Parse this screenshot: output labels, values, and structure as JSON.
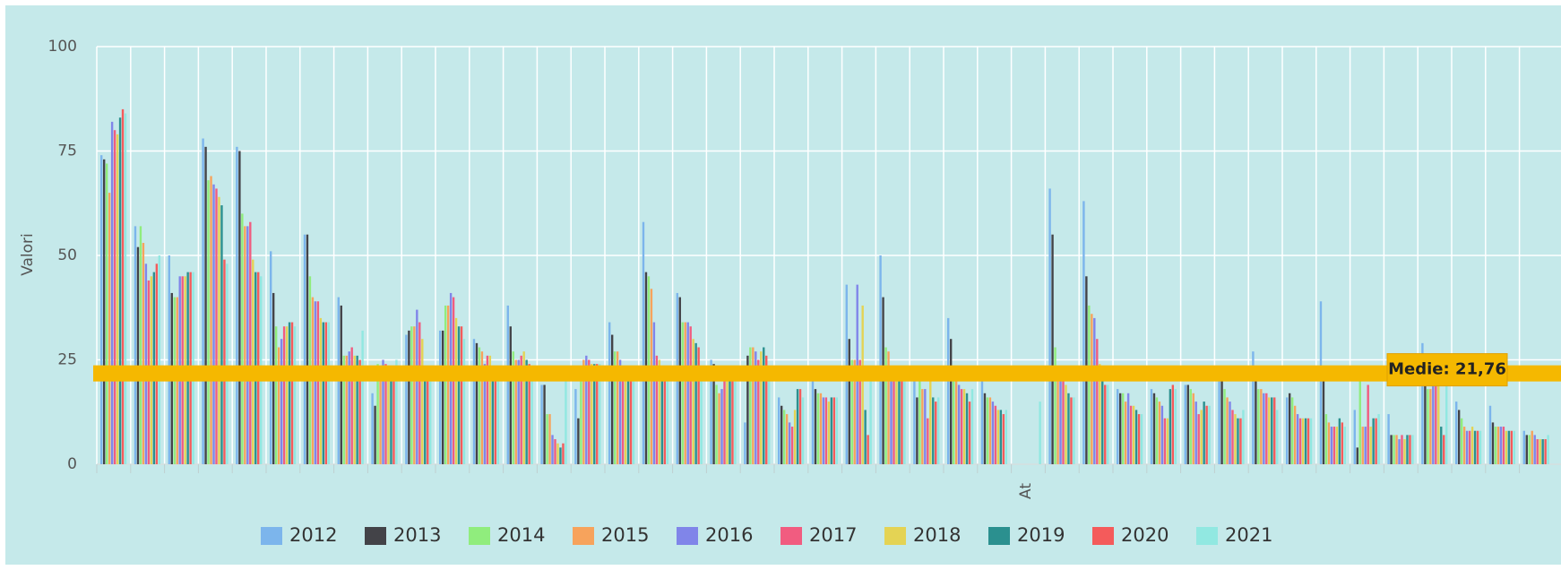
{
  "chart_data": {
    "type": "bar",
    "ylabel": "Valori",
    "xlabel": "At",
    "grid": true,
    "categories": [
      null,
      null,
      null,
      null,
      null,
      null,
      null,
      null,
      null,
      null,
      null,
      null,
      null,
      null,
      null,
      null,
      null,
      null,
      null,
      null,
      null,
      null,
      null,
      null,
      null,
      null,
      null,
      null,
      null,
      null,
      null,
      null,
      null,
      null,
      null,
      null,
      null,
      null,
      null,
      null,
      null,
      null,
      null
    ],
    "ylim": [
      0,
      100
    ],
    "yticks": [
      0,
      25,
      50,
      75,
      100
    ],
    "mean_line": {
      "value": 21.76,
      "label": "Medie: 21,76",
      "color": "#f5b800"
    },
    "series": [
      {
        "name": "2012",
        "color": "#7cb5ec",
        "values": [
          74,
          57,
          50,
          78,
          76,
          51,
          55,
          40,
          17,
          31,
          32,
          30,
          38,
          19,
          18,
          34,
          58,
          41,
          25,
          10,
          16,
          20,
          43,
          50,
          20,
          35,
          20,
          null,
          66,
          63,
          18,
          18,
          19,
          20,
          27,
          16,
          39,
          13,
          12,
          29,
          15,
          14,
          8
        ]
      },
      {
        "name": "2013",
        "color": "#434348",
        "values": [
          73,
          52,
          41,
          76,
          75,
          41,
          55,
          38,
          14,
          32,
          32,
          29,
          33,
          19,
          11,
          31,
          46,
          40,
          24,
          26,
          14,
          18,
          30,
          40,
          16,
          30,
          17,
          null,
          55,
          45,
          17,
          17,
          19,
          20,
          20,
          17,
          20,
          4,
          7,
          20,
          13,
          10,
          7
        ]
      },
      {
        "name": "2014",
        "color": "#90ed7d",
        "values": [
          72,
          57,
          40,
          68,
          60,
          33,
          45,
          26,
          24,
          33,
          38,
          28,
          27,
          12,
          20,
          27,
          45,
          34,
          19,
          28,
          13,
          17,
          25,
          28,
          20,
          20,
          16,
          null,
          28,
          38,
          17,
          16,
          18,
          18,
          18,
          16,
          12,
          20,
          7,
          18,
          11,
          9,
          7
        ]
      },
      {
        "name": "2015",
        "color": "#f7a35c",
        "values": [
          65,
          53,
          40,
          69,
          57,
          28,
          40,
          26,
          22,
          33,
          38,
          27,
          25,
          12,
          25,
          27,
          42,
          34,
          17,
          28,
          12,
          17,
          25,
          27,
          18,
          20,
          16,
          null,
          22,
          36,
          15,
          15,
          17,
          16,
          18,
          14,
          10,
          9,
          7,
          18,
          9,
          9,
          8
        ]
      },
      {
        "name": "2016",
        "color": "#8085e9",
        "values": [
          82,
          48,
          45,
          67,
          57,
          30,
          39,
          27,
          25,
          37,
          41,
          24,
          25,
          7,
          26,
          25,
          34,
          34,
          18,
          27,
          10,
          16,
          43,
          22,
          18,
          19,
          15,
          null,
          20,
          35,
          17,
          14,
          15,
          15,
          17,
          12,
          9,
          9,
          6,
          20,
          8,
          9,
          7
        ]
      },
      {
        "name": "2017",
        "color": "#f15c80",
        "values": [
          80,
          44,
          45,
          66,
          58,
          33,
          39,
          28,
          24,
          34,
          40,
          26,
          26,
          6,
          25,
          22,
          26,
          33,
          21,
          25,
          9,
          16,
          25,
          21,
          11,
          18,
          14,
          null,
          20,
          30,
          14,
          11,
          12,
          13,
          17,
          11,
          9,
          19,
          7,
          20,
          8,
          9,
          6
        ]
      },
      {
        "name": "2018",
        "color": "#e4d354",
        "values": [
          79,
          45,
          45,
          64,
          49,
          33,
          35,
          26,
          23,
          30,
          35,
          26,
          27,
          5,
          24,
          20,
          25,
          30,
          20,
          27,
          13,
          15,
          38,
          21,
          20,
          18,
          13,
          null,
          19,
          24,
          14,
          11,
          13,
          12,
          16,
          11,
          9,
          9,
          6,
          20,
          9,
          8,
          6
        ]
      },
      {
        "name": "2019",
        "color": "#2b908f",
        "values": [
          83,
          46,
          46,
          62,
          46,
          34,
          34,
          26,
          22,
          20,
          33,
          22,
          25,
          4,
          24,
          20,
          22,
          29,
          21,
          28,
          18,
          16,
          13,
          20,
          16,
          17,
          13,
          null,
          17,
          20,
          13,
          18,
          15,
          11,
          16,
          11,
          11,
          11,
          7,
          9,
          8,
          8,
          6
        ]
      },
      {
        "name": "2020",
        "color": "#f45b5b",
        "values": [
          85,
          48,
          46,
          49,
          46,
          34,
          34,
          25,
          21,
          21,
          33,
          21,
          24,
          5,
          24,
          20,
          21,
          28,
          21,
          26,
          18,
          16,
          7,
          20,
          15,
          15,
          12,
          null,
          16,
          19,
          12,
          19,
          14,
          11,
          16,
          11,
          10,
          11,
          7,
          7,
          8,
          8,
          6
        ]
      },
      {
        "name": "2021",
        "color": "#91e8e1",
        "values": [
          84,
          50,
          46,
          48,
          45,
          33,
          34,
          32,
          25,
          20,
          30,
          21,
          20,
          20,
          24,
          20,
          20,
          20,
          20,
          20,
          16,
          16,
          20,
          20,
          16,
          18,
          13,
          15,
          16,
          19,
          12,
          18,
          14,
          13,
          13,
          11,
          9,
          12,
          7,
          20,
          8,
          8,
          7
        ]
      }
    ]
  }
}
